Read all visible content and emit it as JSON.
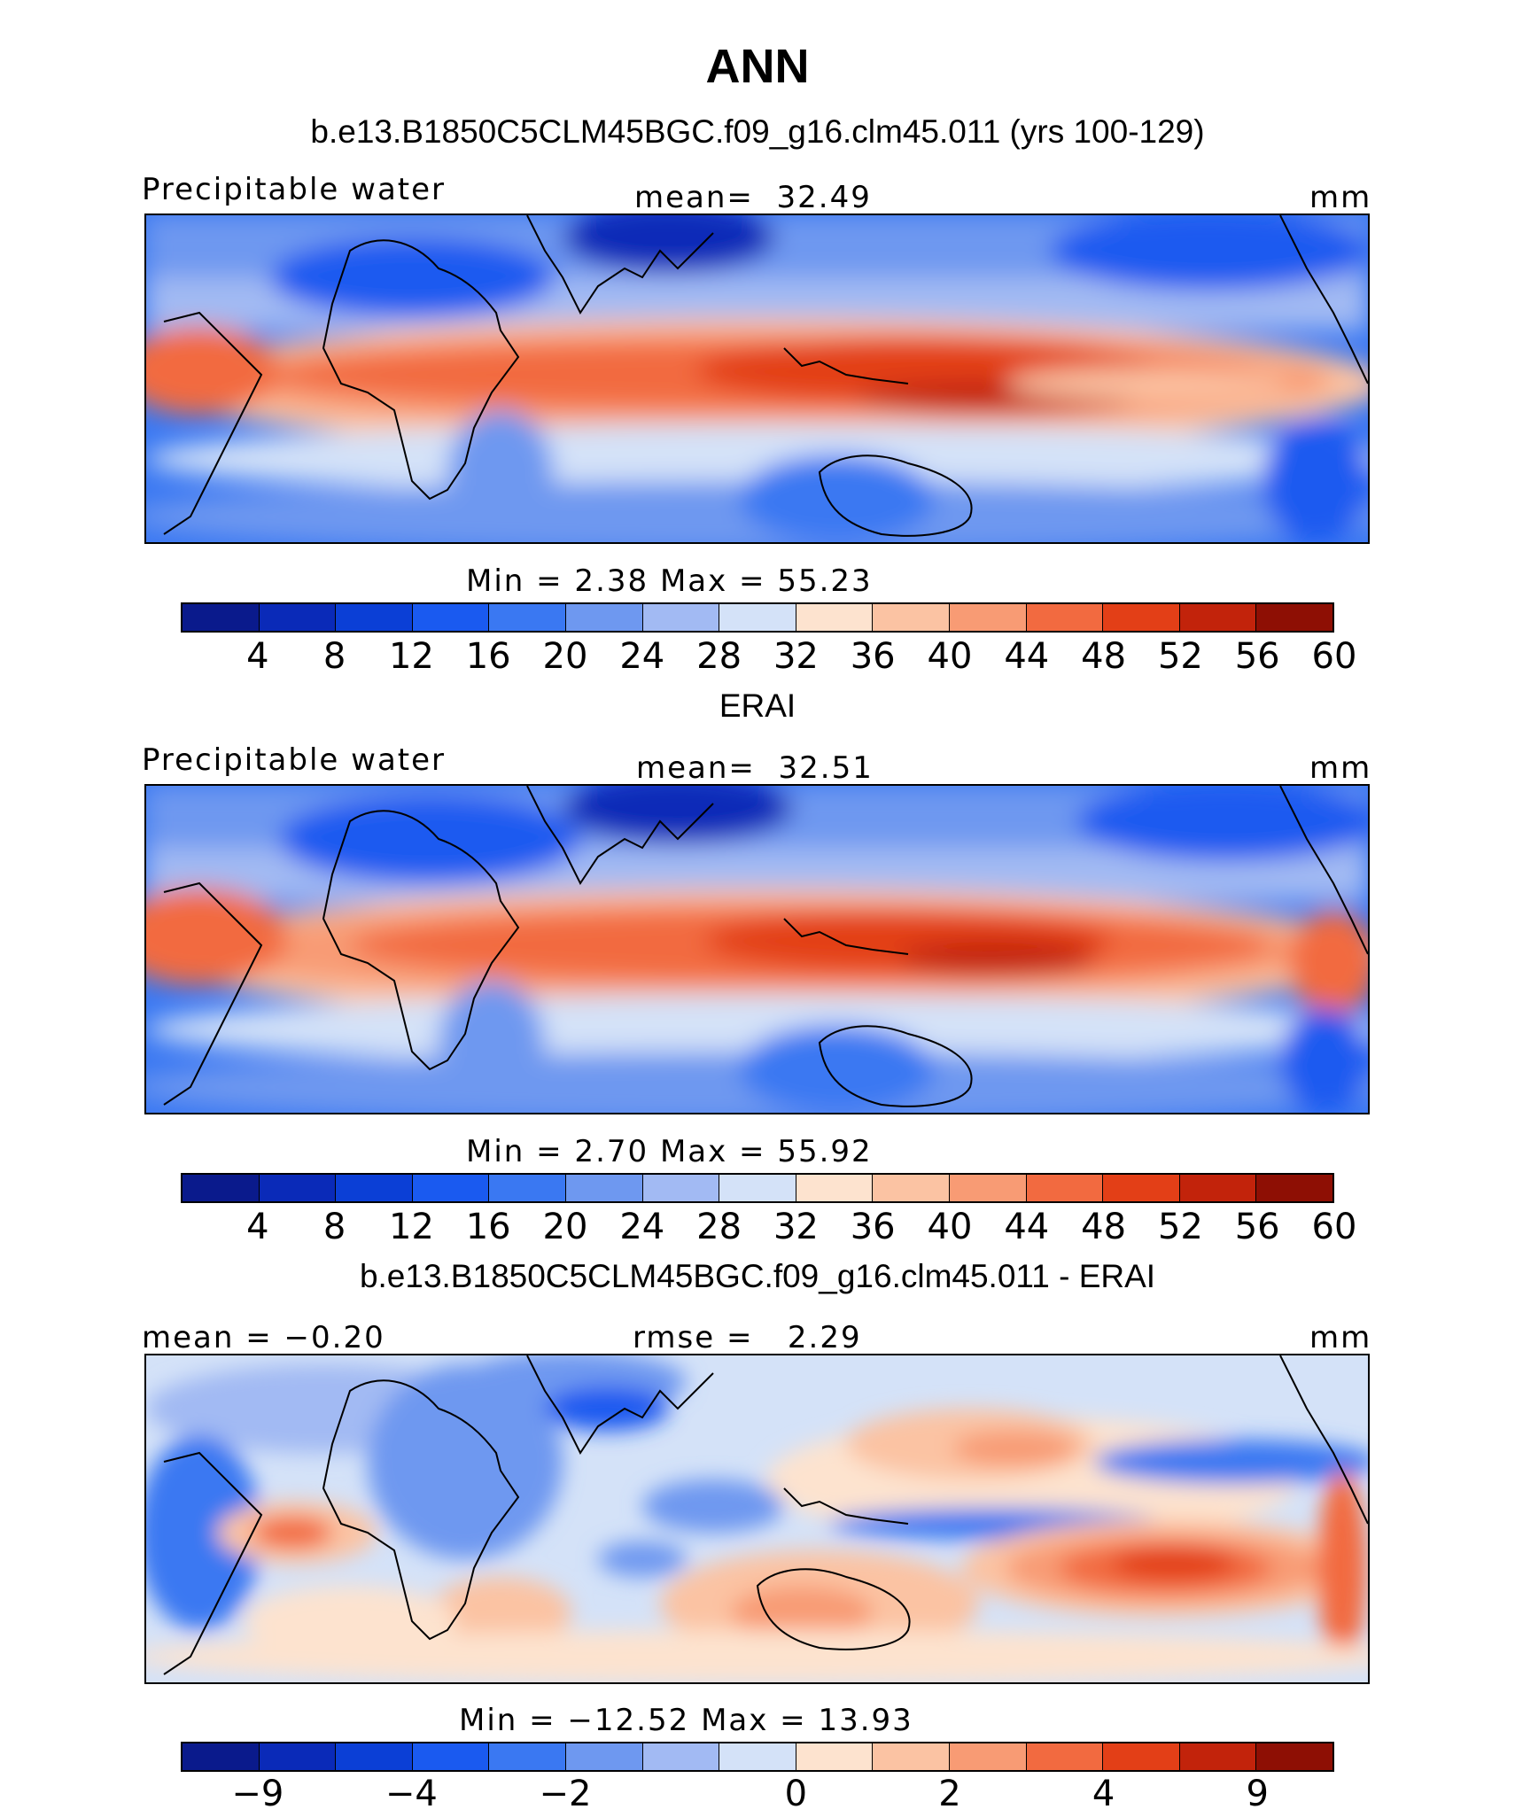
{
  "header": {
    "title": "ANN",
    "subtitle": "b.e13.B1850C5CLM45BGC.f09_g16.clm45.011 (yrs 100-129)"
  },
  "panels": [
    {
      "title": "b.e13.B1850C5CLM45BGC.f09_g16.clm45.011 (yrs 100-129)",
      "variable": "Precipitable water",
      "stat_label": "mean=",
      "stat_value": "32.49",
      "units": "mm",
      "minmax": "Min  =     2.38  Max  =    55.23",
      "colorbar": {
        "colors": [
          "#0a1a8c",
          "#0a2ab8",
          "#0b3fd6",
          "#1a5af0",
          "#3a78f2",
          "#6e98f0",
          "#a2baf3",
          "#d4e2f8",
          "#fde3cf",
          "#fbc3a3",
          "#f89b74",
          "#f26a40",
          "#e33f17",
          "#c2230b",
          "#8e0f04"
        ],
        "ticks": [
          "4",
          "8",
          "12",
          "16",
          "20",
          "24",
          "28",
          "32",
          "36",
          "40",
          "44",
          "48",
          "52",
          "56",
          "60"
        ]
      }
    },
    {
      "title": "ERAI",
      "variable": "Precipitable water",
      "stat_label": "mean=",
      "stat_value": "32.51",
      "units": "mm",
      "minmax": "Min  =     2.70  Max  =    55.92",
      "colorbar": {
        "colors": [
          "#0a1a8c",
          "#0a2ab8",
          "#0b3fd6",
          "#1a5af0",
          "#3a78f2",
          "#6e98f0",
          "#a2baf3",
          "#d4e2f8",
          "#fde3cf",
          "#fbc3a3",
          "#f89b74",
          "#f26a40",
          "#e33f17",
          "#c2230b",
          "#8e0f04"
        ],
        "ticks": [
          "4",
          "8",
          "12",
          "16",
          "20",
          "24",
          "28",
          "32",
          "36",
          "40",
          "44",
          "48",
          "52",
          "56",
          "60"
        ]
      }
    },
    {
      "title": "b.e13.B1850C5CLM45BGC.f09_g16.clm45.011 - ERAI",
      "variable": "mean =   −0.20",
      "stat_label": "rmse  =",
      "stat_value": "2.29",
      "units": "mm",
      "minmax": "Min  =  −12.52  Max  =    13.93",
      "colorbar": {
        "colors": [
          "#0a1a8c",
          "#0a2ab8",
          "#0b3fd6",
          "#1a5af0",
          "#3a78f2",
          "#6e98f0",
          "#a2baf3",
          "#d4e2f8",
          "#fde3cf",
          "#fbc3a3",
          "#f89b74",
          "#f26a40",
          "#e33f17",
          "#c2230b",
          "#8e0f04"
        ],
        "ticks": [
          "−9",
          "−4",
          "−2",
          "0",
          "2",
          "4",
          "9"
        ]
      }
    }
  ]
}
